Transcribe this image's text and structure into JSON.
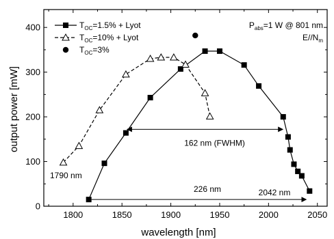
{
  "chart_data": {
    "type": "line",
    "title": "",
    "xlabel": "wavelength [nm]",
    "ylabel": "output power [mW]",
    "xlim": [
      1770,
      2060
    ],
    "ylim": [
      0,
      440
    ],
    "xticks": [
      1800,
      1850,
      1900,
      1950,
      2000,
      2050
    ],
    "yticks": [
      0,
      100,
      200,
      300,
      400
    ],
    "grid": false,
    "legend_position": "top-left",
    "series": [
      {
        "name_main": "T",
        "name_sub": "OC",
        "name_rest": "=1.5% + Lyot",
        "style": "solid",
        "marker": "filled-square",
        "color": "#000000",
        "x": [
          1816,
          1832,
          1854,
          1879,
          1910,
          1935,
          1950,
          1975,
          1990,
          2015,
          2020,
          2022,
          2026,
          2030,
          2034,
          2042
        ],
        "y": [
          15,
          96,
          164,
          243,
          307,
          347,
          347,
          316,
          269,
          200,
          155,
          126,
          94,
          78,
          68,
          34
        ]
      },
      {
        "name_main": "T",
        "name_sub": "OC",
        "name_rest": "=10% + Lyot",
        "style": "dashed",
        "marker": "open-triangle",
        "color": "#000000",
        "x": [
          1790,
          1806,
          1827,
          1854,
          1879,
          1890,
          1903,
          1915,
          1935,
          1940
        ],
        "y": [
          98,
          135,
          215,
          295,
          330,
          333,
          333,
          317,
          253,
          201
        ]
      },
      {
        "name_main": "T",
        "name_sub": "OC",
        "name_rest": "=3%",
        "style": "none",
        "marker": "filled-circle",
        "color": "#000000",
        "x": [
          1925
        ],
        "y": [
          382
        ]
      }
    ],
    "annotations": {
      "condition_main": "P",
      "condition_sub": "abs",
      "condition_rest": "=1 W @ 801 nm",
      "polarization_main": "E//N",
      "polarization_sub": "m",
      "left_edge_label": "1790 nm",
      "right_edge_label": "2042 nm",
      "fwhm_label": "162 nm (FWHM)",
      "fwhm_from": 1854,
      "fwhm_to": 2016,
      "fwhm_y": 172,
      "span_label": "226 nm",
      "span_from": 1816,
      "span_to": 2042,
      "span_y": 15
    }
  }
}
